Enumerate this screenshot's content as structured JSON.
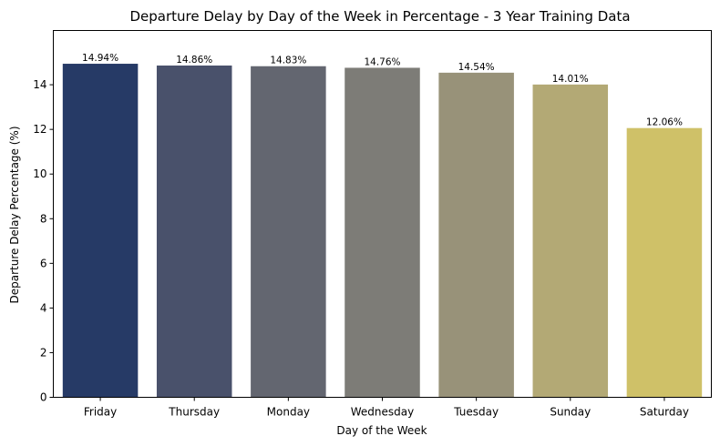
{
  "chart_data": {
    "type": "bar",
    "title": "Departure Delay by Day of the Week in Percentage - 3 Year Training Data",
    "xlabel": "Day of the Week",
    "ylabel": "Departure Delay Percentage (%)",
    "categories": [
      "Friday",
      "Thursday",
      "Monday",
      "Wednesday",
      "Tuesday",
      "Sunday",
      "Saturday"
    ],
    "values": [
      14.94,
      14.86,
      14.83,
      14.76,
      14.54,
      14.01,
      12.06
    ],
    "data_labels": [
      "14.94%",
      "14.86%",
      "14.83%",
      "14.76%",
      "14.54%",
      "14.01%",
      "12.06%"
    ],
    "colors": [
      "#263a66",
      "#49516b",
      "#636670",
      "#7d7c77",
      "#989279",
      "#b3a975",
      "#cfc168"
    ],
    "ylim": [
      0,
      16.43
    ],
    "yticks": [
      0,
      2,
      4,
      6,
      8,
      10,
      12,
      14
    ],
    "grid": false,
    "legend": "none"
  }
}
